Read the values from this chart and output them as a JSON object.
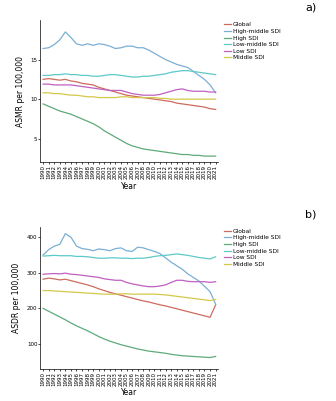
{
  "years": [
    1990,
    1991,
    1992,
    1993,
    1994,
    1995,
    1996,
    1997,
    1998,
    1999,
    2000,
    2001,
    2002,
    2003,
    2004,
    2005,
    2006,
    2007,
    2008,
    2009,
    2010,
    2011,
    2012,
    2013,
    2014,
    2015,
    2016,
    2017,
    2018,
    2019,
    2020,
    2021
  ],
  "panel_a": {
    "ylabel": "ASMR per 100,000",
    "ylim": [
      2,
      20
    ],
    "yticks": [
      5,
      10,
      15
    ],
    "Global": [
      12.5,
      12.6,
      12.5,
      12.4,
      12.5,
      12.3,
      12.2,
      12.0,
      11.9,
      11.8,
      11.5,
      11.3,
      11.1,
      10.9,
      10.7,
      10.5,
      10.4,
      10.3,
      10.2,
      10.1,
      10.0,
      9.9,
      9.8,
      9.7,
      9.5,
      9.4,
      9.3,
      9.2,
      9.1,
      9.0,
      8.8,
      8.7
    ],
    "High_middle_SDI": [
      16.4,
      16.5,
      16.9,
      17.5,
      18.5,
      17.8,
      17.0,
      16.8,
      17.0,
      16.8,
      17.0,
      16.9,
      16.7,
      16.4,
      16.5,
      16.7,
      16.7,
      16.5,
      16.5,
      16.2,
      15.8,
      15.4,
      15.0,
      14.7,
      14.4,
      14.2,
      14.0,
      13.5,
      13.0,
      12.5,
      11.8,
      10.8
    ],
    "High_SDI": [
      9.4,
      9.1,
      8.8,
      8.5,
      8.3,
      8.1,
      7.8,
      7.5,
      7.2,
      6.9,
      6.5,
      6.0,
      5.6,
      5.2,
      4.8,
      4.4,
      4.1,
      3.9,
      3.7,
      3.6,
      3.5,
      3.4,
      3.3,
      3.2,
      3.1,
      3.0,
      3.0,
      2.9,
      2.9,
      2.8,
      2.8,
      2.8
    ],
    "Low_middle_SDI": [
      13.0,
      13.0,
      13.1,
      13.1,
      13.2,
      13.1,
      13.1,
      13.0,
      13.0,
      12.9,
      12.9,
      13.0,
      13.1,
      13.1,
      13.0,
      12.9,
      12.8,
      12.8,
      12.9,
      12.9,
      13.0,
      13.1,
      13.2,
      13.4,
      13.5,
      13.6,
      13.6,
      13.5,
      13.4,
      13.3,
      13.2,
      13.1
    ],
    "Low_SDI": [
      11.9,
      11.9,
      11.8,
      11.8,
      11.8,
      11.8,
      11.7,
      11.6,
      11.5,
      11.4,
      11.3,
      11.2,
      11.1,
      11.1,
      11.1,
      10.9,
      10.7,
      10.6,
      10.5,
      10.5,
      10.5,
      10.6,
      10.8,
      11.0,
      11.2,
      11.3,
      11.1,
      11.0,
      11.0,
      11.0,
      10.9,
      10.9
    ],
    "Middle_SDI": [
      10.8,
      10.8,
      10.7,
      10.7,
      10.6,
      10.5,
      10.5,
      10.4,
      10.3,
      10.3,
      10.2,
      10.2,
      10.2,
      10.2,
      10.3,
      10.3,
      10.2,
      10.2,
      10.2,
      10.2,
      10.2,
      10.1,
      10.1,
      10.0,
      10.0,
      10.0,
      10.0,
      10.0,
      10.0,
      10.0,
      10.0,
      10.0
    ]
  },
  "panel_b": {
    "ylabel": "ASDR per 100,000",
    "ylim": [
      30,
      430
    ],
    "yticks": [
      100,
      200,
      300,
      400
    ],
    "Global": [
      282,
      285,
      283,
      280,
      282,
      278,
      274,
      270,
      266,
      261,
      255,
      250,
      245,
      241,
      237,
      233,
      229,
      225,
      221,
      218,
      214,
      210,
      207,
      203,
      199,
      195,
      191,
      187,
      183,
      179,
      175,
      210
    ],
    "High_middle_SDI": [
      350,
      365,
      375,
      380,
      410,
      400,
      375,
      368,
      366,
      362,
      367,
      365,
      362,
      368,
      370,
      362,
      360,
      372,
      370,
      365,
      360,
      354,
      342,
      330,
      320,
      310,
      297,
      287,
      277,
      262,
      247,
      212
    ],
    "High_SDI": [
      200,
      192,
      184,
      176,
      168,
      159,
      151,
      144,
      137,
      129,
      121,
      114,
      108,
      103,
      98,
      94,
      90,
      86,
      83,
      80,
      78,
      76,
      74,
      71,
      69,
      67,
      66,
      65,
      64,
      63,
      62,
      65
    ],
    "Low_middle_SDI": [
      347,
      348,
      349,
      348,
      348,
      348,
      346,
      346,
      345,
      343,
      341,
      341,
      342,
      342,
      341,
      341,
      340,
      341,
      341,
      343,
      346,
      348,
      349,
      351,
      353,
      351,
      349,
      346,
      343,
      341,
      339,
      345
    ],
    "Low_SDI": [
      296,
      297,
      298,
      297,
      299,
      296,
      295,
      293,
      291,
      289,
      287,
      283,
      281,
      279,
      279,
      273,
      269,
      266,
      263,
      261,
      261,
      263,
      266,
      273,
      279,
      279,
      276,
      275,
      275,
      275,
      273,
      275
    ],
    "Middle_SDI": [
      250,
      250,
      249,
      248,
      247,
      246,
      245,
      244,
      243,
      242,
      241,
      240,
      240,
      240,
      241,
      241,
      240,
      240,
      240,
      240,
      240,
      239,
      238,
      236,
      234,
      232,
      230,
      228,
      226,
      224,
      222,
      225
    ]
  },
  "colors": {
    "Global": "#cd6b5e",
    "High_middle_SDI": "#7bafd4",
    "High_SDI": "#5dab7a",
    "Low_middle_SDI": "#5ec9c9",
    "Low_SDI": "#c060c0",
    "Middle_SDI": "#d4c84a"
  },
  "legend_labels": {
    "Global": "Global",
    "High_middle_SDI": "High-middle SDI",
    "High_SDI": "High SDI",
    "Low_middle_SDI": "Low-middle SDI",
    "Low_SDI": "Low SDI",
    "Middle_SDI": "Middle SDI"
  },
  "linewidth": 0.9,
  "background_color": "#ffffff",
  "tick_label_fontsize": 4.0,
  "axis_label_fontsize": 5.5,
  "legend_fontsize": 4.2,
  "panel_label_fontsize": 8
}
